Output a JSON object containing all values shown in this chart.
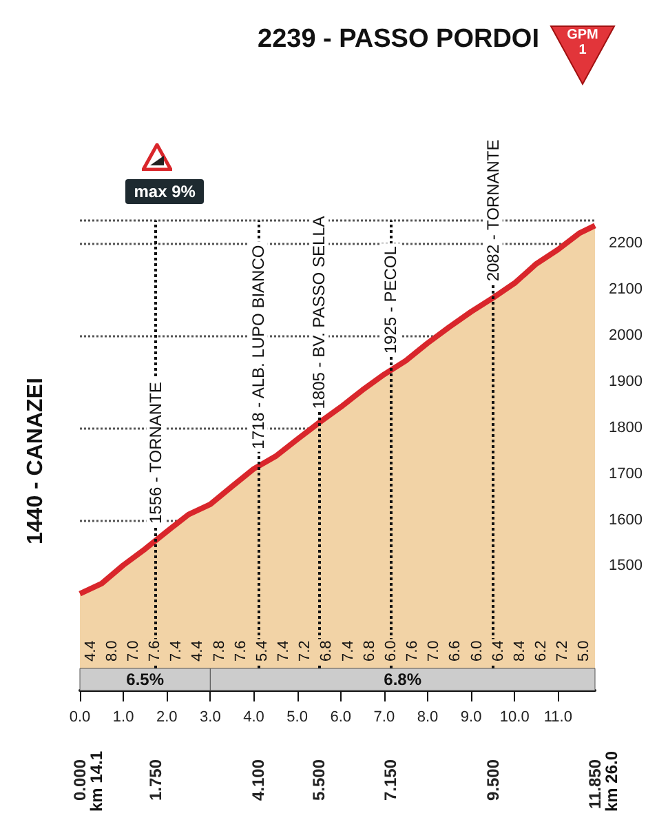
{
  "chart_data": {
    "type": "area",
    "title": "2239 - PASSO PORDOI",
    "x": [
      0,
      0.5,
      1,
      1.5,
      2,
      2.5,
      3,
      3.5,
      4,
      4.5,
      5,
      5.5,
      6,
      6.5,
      7,
      7.5,
      8,
      8.5,
      9,
      9.5,
      10,
      10.5,
      11,
      11.5,
      11.85
    ],
    "series": [
      {
        "color": "#d9262b",
        "values": [
          1440,
          1462,
          1502,
          1537,
          1575,
          1612,
          1634,
          1673,
          1711,
          1738,
          1775,
          1811,
          1845,
          1882,
          1916,
          1946,
          1984,
          2019,
          2052,
          2082,
          2114,
          2156,
          2187,
          2223,
          2239
        ]
      }
    ],
    "xlim": [
      0,
      11.85
    ],
    "xticks": [
      {
        "value": 0,
        "label": "0.0"
      },
      {
        "value": 1,
        "label": "1.0"
      },
      {
        "value": 2,
        "label": "2.0"
      },
      {
        "value": 3,
        "label": "3.0"
      },
      {
        "value": 4,
        "label": "4.0"
      },
      {
        "value": 5,
        "label": "5.0"
      },
      {
        "value": 6,
        "label": "6.0"
      },
      {
        "value": 7,
        "label": "7.0"
      },
      {
        "value": 8,
        "label": "8.0"
      },
      {
        "value": 9,
        "label": "9.0"
      },
      {
        "value": 10,
        "label": "10.0"
      },
      {
        "value": 11,
        "label": "11.0"
      }
    ],
    "x2ticks": [
      {
        "value": 0,
        "label": "0.000"
      },
      {
        "value": 1.75,
        "label": "1.750"
      },
      {
        "value": 4.1,
        "label": "4.100"
      },
      {
        "value": 5.5,
        "label": "5.500"
      },
      {
        "value": 7.15,
        "label": "7.150"
      },
      {
        "value": 9.5,
        "label": "9.500"
      },
      {
        "value": 11.85,
        "label": "11.850"
      }
    ],
    "x2lim": [
      0,
      11.85
    ],
    "ylim": [
      1230,
      2250
    ],
    "yticks": [
      1500,
      1600,
      1700,
      1800,
      1900,
      2000,
      2100,
      2200
    ],
    "grid": "y",
    "bands": [
      {
        "axis": "x",
        "from": 0,
        "to": 3,
        "label": "6.5%",
        "color": "#cccccc"
      },
      {
        "axis": "x",
        "from": 3,
        "to": 11.85,
        "label": "6.8%",
        "color": "#cccccc"
      }
    ],
    "ref_lines": [
      {
        "axis": "x",
        "value": 1.75,
        "line_style": "dotted"
      },
      {
        "axis": "x",
        "value": 4.1,
        "line_style": "dotted"
      },
      {
        "axis": "x",
        "value": 5.5,
        "line_style": "dotted"
      },
      {
        "axis": "x",
        "value": 7.15,
        "line_style": "dotted"
      },
      {
        "axis": "x",
        "value": 9.5,
        "line_style": "dotted"
      }
    ],
    "annotations": [
      "1440 - CANAZEI",
      "max 9%",
      "GPM",
      "1",
      "km 14.1",
      "km 26.0",
      "4.4",
      "8.0",
      "7.0",
      "7.6",
      "7.4",
      "4.4",
      "7.8",
      "7.6",
      "5.4",
      "7.4",
      "7.2",
      "6.8",
      "7.4",
      "6.8",
      "6.0",
      "7.6",
      "7.0",
      "6.6",
      "6.0",
      "6.4",
      "8.4",
      "6.2",
      "7.2",
      "5.0",
      {
        "text": "1556 - TORNANTE",
        "x": 1.75,
        "y": 1556
      },
      {
        "text": "1718 - ALB. LUPO BIANCO",
        "x": 4.1,
        "y": 1718
      },
      {
        "text": "1805 - BV. PASSO SELLA",
        "x": 5.5,
        "y": 1805
      },
      {
        "text": "1925 - PECOL",
        "x": 7.15,
        "y": 1925
      },
      {
        "text": "2082 - TORNANTE",
        "x": 9.5,
        "y": 2082
      }
    ]
  }
}
